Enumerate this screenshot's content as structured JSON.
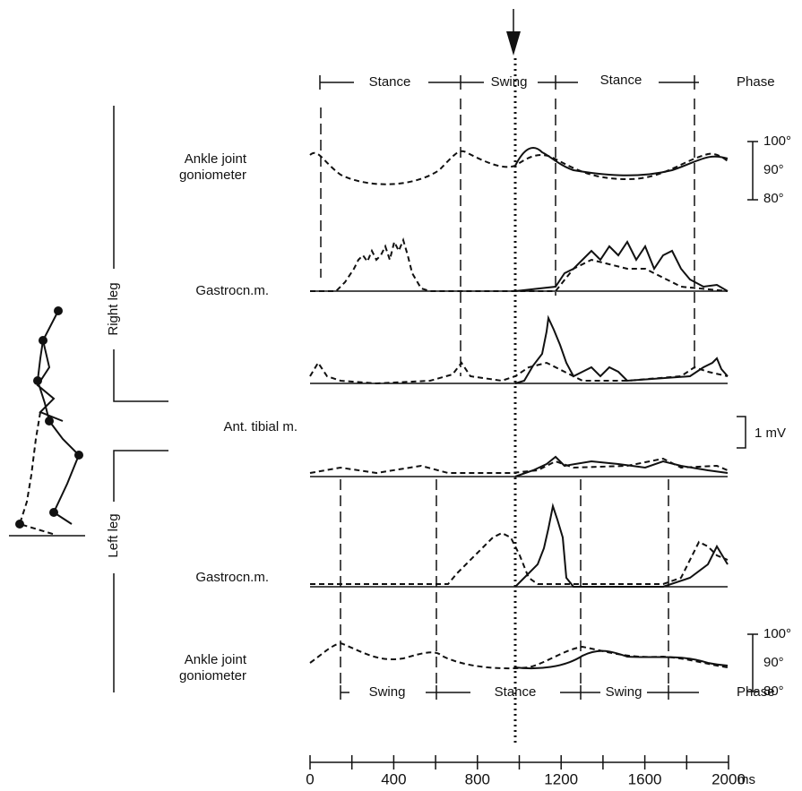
{
  "figure": {
    "phases_right": [
      "Stance",
      "Swing",
      "Stance",
      "Phase"
    ],
    "phases_left": [
      "Swing",
      "Stance",
      "Swing",
      "Phase"
    ],
    "side_labels": [
      "Right leg",
      "Left leg"
    ],
    "trace_labels": {
      "ankle_right": [
        "Ankle joint",
        "goniometer"
      ],
      "gastrocnemius_right": "Gastrocn.m.",
      "anterior_tibial": "Ant. tibial m.",
      "gastrocnemius_left": "Gastrocn.m.",
      "ankle_left": [
        "Ankle joint",
        "goniometer"
      ]
    },
    "angle_scale": [
      "100°",
      "90°",
      "80°"
    ],
    "voltage_scale": "1 mV",
    "time_axis": {
      "xlim": [
        0,
        2000
      ],
      "ticks": [
        0,
        200,
        400,
        600,
        800,
        1000,
        1200,
        1400,
        1600,
        1800,
        2000
      ],
      "labels": [
        0,
        400,
        800,
        1200,
        1600,
        2000
      ],
      "unit": "ms"
    }
  }
}
